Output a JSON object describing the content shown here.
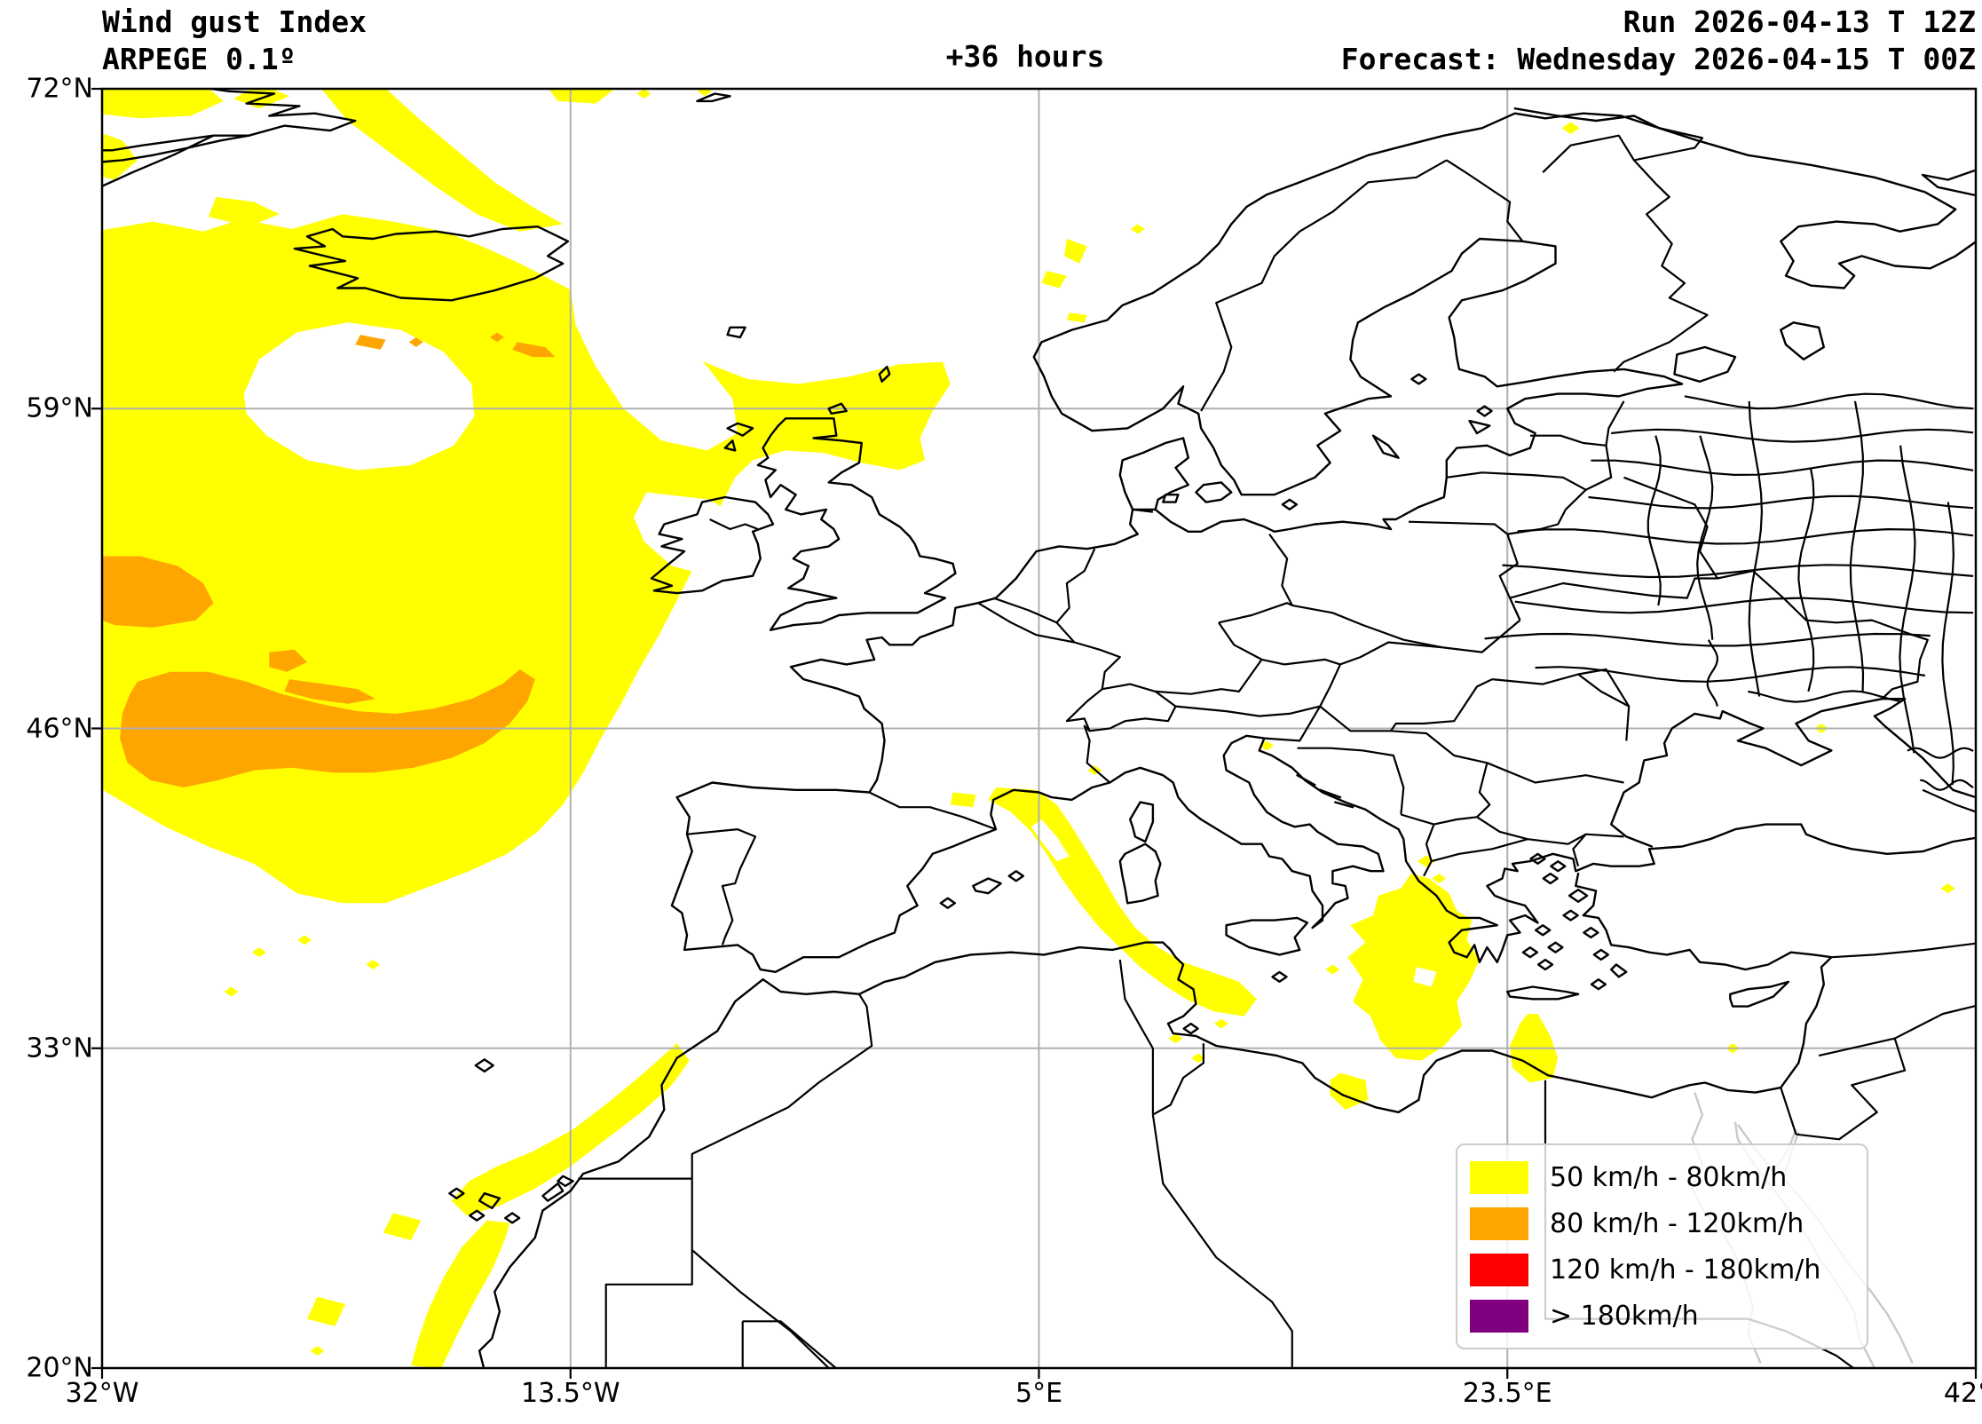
{
  "header": {
    "title_line1": "Wind gust Index",
    "title_line2": "ARPEGE 0.1º",
    "lead_time": "+36 hours",
    "run_line": "Run 2026-04-13 T 12Z",
    "forecast_line": "Forecast: Wednesday 2026-04-15 T 00Z"
  },
  "axes": {
    "lat_ticks": [
      {
        "label": "72°N",
        "value": 72
      },
      {
        "label": "59°N",
        "value": 59
      },
      {
        "label": "46°N",
        "value": 46
      },
      {
        "label": "33°N",
        "value": 33
      },
      {
        "label": "20°N",
        "value": 20
      }
    ],
    "lon_ticks": [
      {
        "label": "32°W",
        "value": -32
      },
      {
        "label": "13.5°W",
        "value": -13.5
      },
      {
        "label": "5°E",
        "value": 5
      },
      {
        "label": "23.5°E",
        "value": 23.5
      },
      {
        "label": "42°E",
        "value": 42
      }
    ]
  },
  "legend": {
    "items": [
      {
        "label": "50 km/h - 80km/h",
        "color": "#ffff00"
      },
      {
        "label": "80 km/h - 120km/h",
        "color": "#ffa500"
      },
      {
        "label": "120 km/h - 180km/h",
        "color": "#ff0000"
      },
      {
        "label": "> 180km/h",
        "color": "#800080"
      }
    ]
  },
  "colors": {
    "background": "#ffffff",
    "coastline": "#000000",
    "gridline": "#b0b0b0",
    "outside_domain": "#c9c9c9"
  },
  "map_extent": {
    "west": "32°W",
    "east": "42°E",
    "south": "20°N",
    "north": "72°N"
  }
}
